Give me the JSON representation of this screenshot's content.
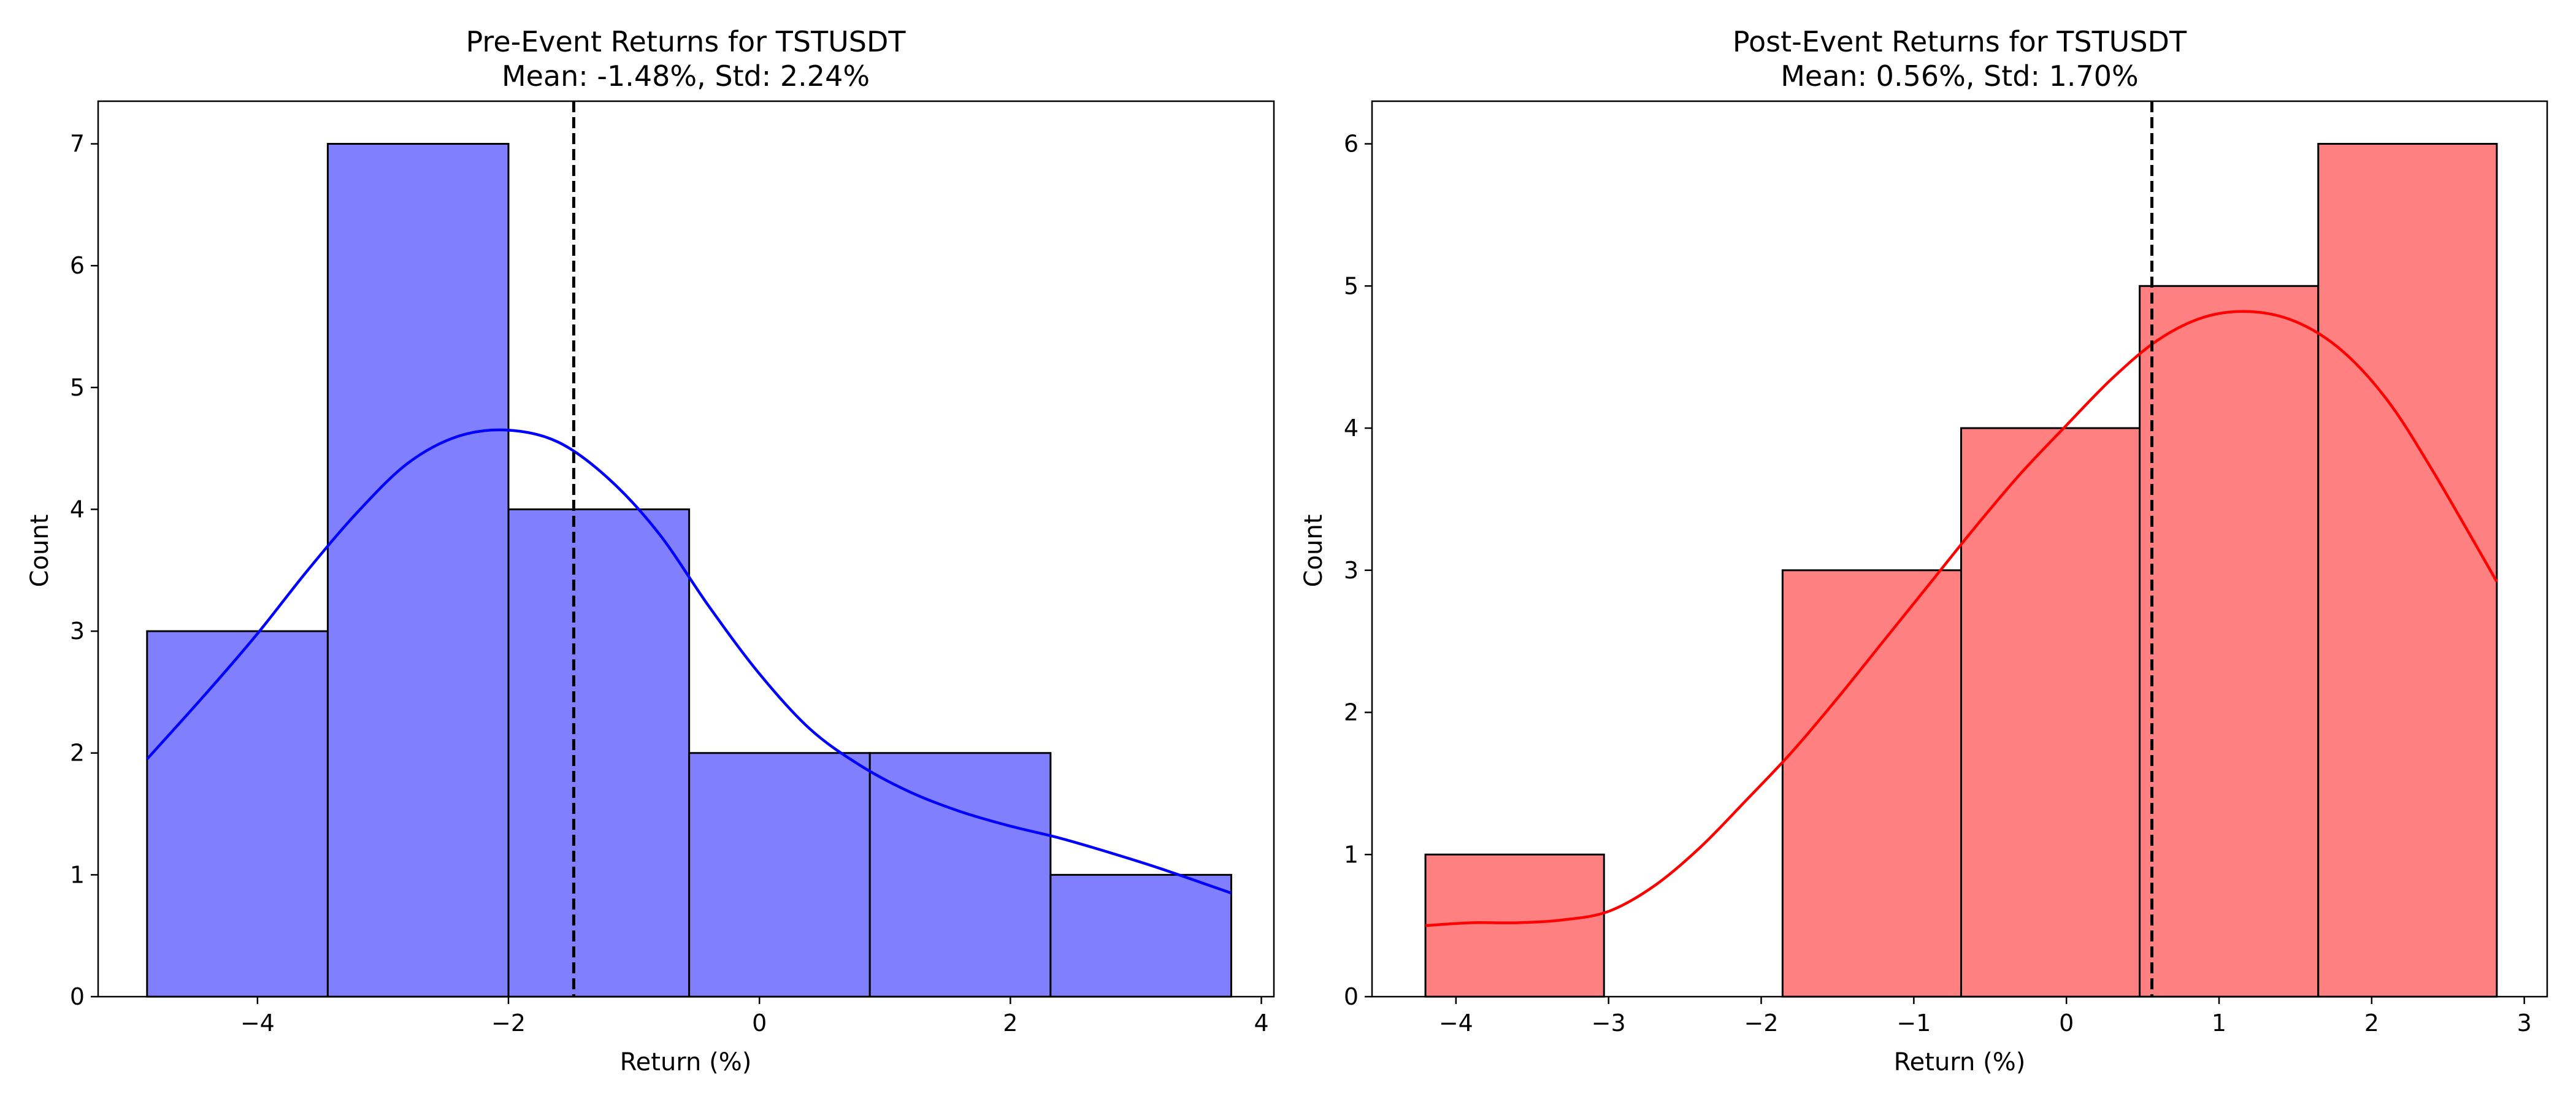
{
  "chart_data": [
    {
      "type": "bar",
      "title": "Pre-Event Returns for TSTUSDT",
      "subtitle": "Mean: -1.48%, Std: 2.24%",
      "xlabel": "Return (%)",
      "ylabel": "Count",
      "xlim": [
        -5.27,
        4.1
      ],
      "ylim": [
        0,
        7.35
      ],
      "xticks": [
        -4,
        -2,
        0,
        2,
        4
      ],
      "yticks": [
        0,
        1,
        2,
        3,
        4,
        5,
        6,
        7
      ],
      "bins": [
        {
          "start": -4.88,
          "end": -3.44,
          "count": 3
        },
        {
          "start": -3.44,
          "end": -2.0,
          "count": 7
        },
        {
          "start": -2.0,
          "end": -0.56,
          "count": 4
        },
        {
          "start": -0.56,
          "end": 0.88,
          "count": 2
        },
        {
          "start": 0.88,
          "end": 2.32,
          "count": 2
        },
        {
          "start": 2.32,
          "end": 3.76,
          "count": 1
        }
      ],
      "mean_line": -1.48,
      "kde": {
        "x": [
          -4.88,
          -4.4,
          -4.0,
          -3.6,
          -3.2,
          -2.8,
          -2.4,
          -2.0,
          -1.6,
          -1.2,
          -0.8,
          -0.4,
          0.0,
          0.4,
          0.8,
          1.2,
          1.6,
          2.0,
          2.4,
          2.8,
          3.2,
          3.76
        ],
        "y": [
          1.95,
          2.5,
          2.98,
          3.5,
          3.98,
          4.38,
          4.6,
          4.65,
          4.55,
          4.25,
          3.8,
          3.2,
          2.65,
          2.2,
          1.9,
          1.68,
          1.52,
          1.4,
          1.3,
          1.18,
          1.05,
          0.85
        ]
      },
      "colors": {
        "bar": "#8080ff",
        "kde": "#0000ff",
        "edge": "#000000",
        "mean": "#000000"
      },
      "grid": false
    },
    {
      "type": "bar",
      "title": "Post-Event Returns for TSTUSDT",
      "subtitle": "Mean: 0.56%, Std: 1.70%",
      "xlabel": "Return (%)",
      "ylabel": "Count",
      "xlim": [
        -4.55,
        3.15
      ],
      "ylim": [
        0,
        6.3
      ],
      "xticks": [
        -4,
        -3,
        -2,
        -1,
        0,
        1,
        2,
        3
      ],
      "yticks": [
        0,
        1,
        2,
        3,
        4,
        5,
        6
      ],
      "bins": [
        {
          "start": -4.2,
          "end": -3.03,
          "count": 1
        },
        {
          "start": -3.03,
          "end": -1.86,
          "count": 0
        },
        {
          "start": -1.86,
          "end": -0.69,
          "count": 3
        },
        {
          "start": -0.69,
          "end": 0.48,
          "count": 4
        },
        {
          "start": 0.48,
          "end": 1.65,
          "count": 5
        },
        {
          "start": 1.65,
          "end": 2.82,
          "count": 6
        }
      ],
      "mean_line": 0.56,
      "kde": {
        "x": [
          -4.2,
          -3.9,
          -3.6,
          -3.3,
          -3.0,
          -2.7,
          -2.4,
          -2.1,
          -1.8,
          -1.5,
          -1.2,
          -0.9,
          -0.6,
          -0.3,
          0.0,
          0.3,
          0.6,
          0.9,
          1.2,
          1.5,
          1.8,
          2.1,
          2.4,
          2.82
        ],
        "y": [
          0.5,
          0.52,
          0.52,
          0.54,
          0.6,
          0.78,
          1.05,
          1.38,
          1.72,
          2.1,
          2.5,
          2.9,
          3.3,
          3.68,
          4.02,
          4.35,
          4.62,
          4.78,
          4.82,
          4.75,
          4.55,
          4.2,
          3.7,
          2.92
        ]
      },
      "colors": {
        "bar": "#ff8080",
        "kde": "#ff0000",
        "edge": "#000000",
        "mean": "#000000"
      },
      "grid": false
    }
  ]
}
